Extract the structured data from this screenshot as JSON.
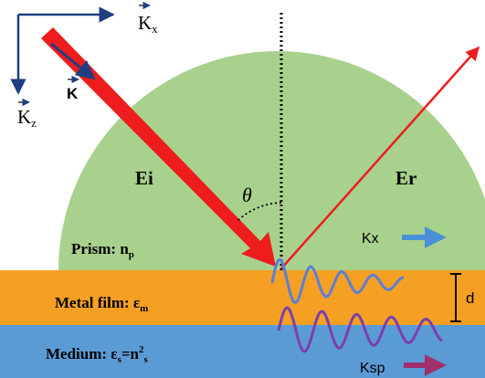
{
  "labels": {
    "kx_axis": "K",
    "kx_axis_sub": "x",
    "kz_axis": "K",
    "kz_axis_sub": "z",
    "k_vector": "K",
    "ei": "Ei",
    "er": "Er",
    "theta": "θ",
    "kx_wave": "Kx",
    "ksp_wave": "Ksp",
    "d": "d"
  },
  "layers": {
    "prism_label": "Prism: n",
    "prism_sub": "p",
    "metal_label": "Metal film: ε",
    "metal_sub": "m",
    "medium_label": "Medium: ε",
    "medium_eq": "=n",
    "medium_sup": "2",
    "medium_sub": "s",
    "medium_sub2": "s"
  },
  "colors": {
    "prism": "#a9d18e",
    "metal": "#f5a023",
    "medium": "#5b9bd5",
    "incident_beam": "#ee1c1c",
    "reflected_beam": "#ee1c1c",
    "axes": "#1f3f7f",
    "kx_arrow": "#4a90d9",
    "ksp_arrow": "#a0306e",
    "wave_metal": "#5b7fd6",
    "wave_medium": "#7b3fb0"
  }
}
